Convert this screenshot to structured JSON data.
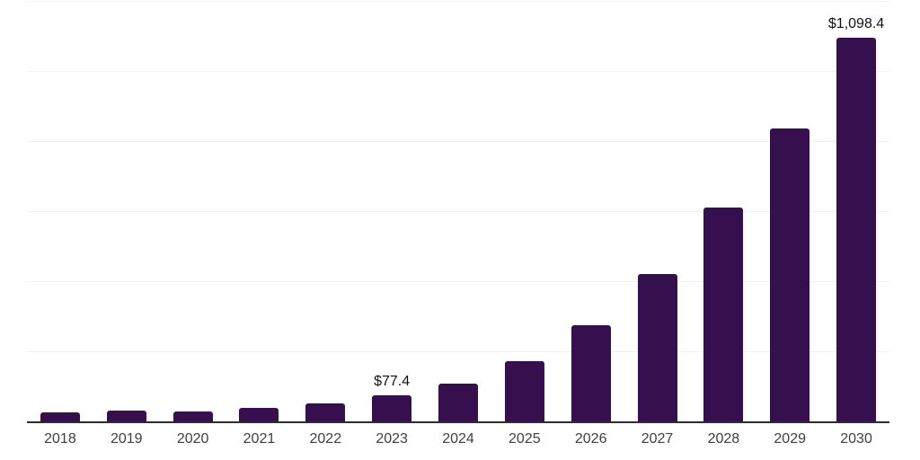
{
  "chart_data": {
    "type": "bar",
    "title": "",
    "xlabel": "",
    "ylabel": "",
    "categories": [
      "2018",
      "2019",
      "2020",
      "2021",
      "2022",
      "2023",
      "2024",
      "2025",
      "2026",
      "2027",
      "2028",
      "2029",
      "2030"
    ],
    "values": [
      28,
      34,
      30,
      40,
      53,
      77.4,
      110,
      175,
      278,
      424,
      612,
      839,
      1098.4
    ],
    "point_labels": {
      "2023": "$77.4",
      "2030": "$1,098.4"
    },
    "ylim": [
      0,
      1200
    ],
    "gridline_interval": 200,
    "grid": "horizontal gridlines only, no y-axis tick labels",
    "legend": "none",
    "colors": {
      "bar": "#36104E",
      "background": "#ffffff",
      "gridline": "#f1f1f1",
      "axis_line": "#2d2d2d",
      "value_label": "#111111",
      "tick_label": "#3f3f3f"
    }
  }
}
